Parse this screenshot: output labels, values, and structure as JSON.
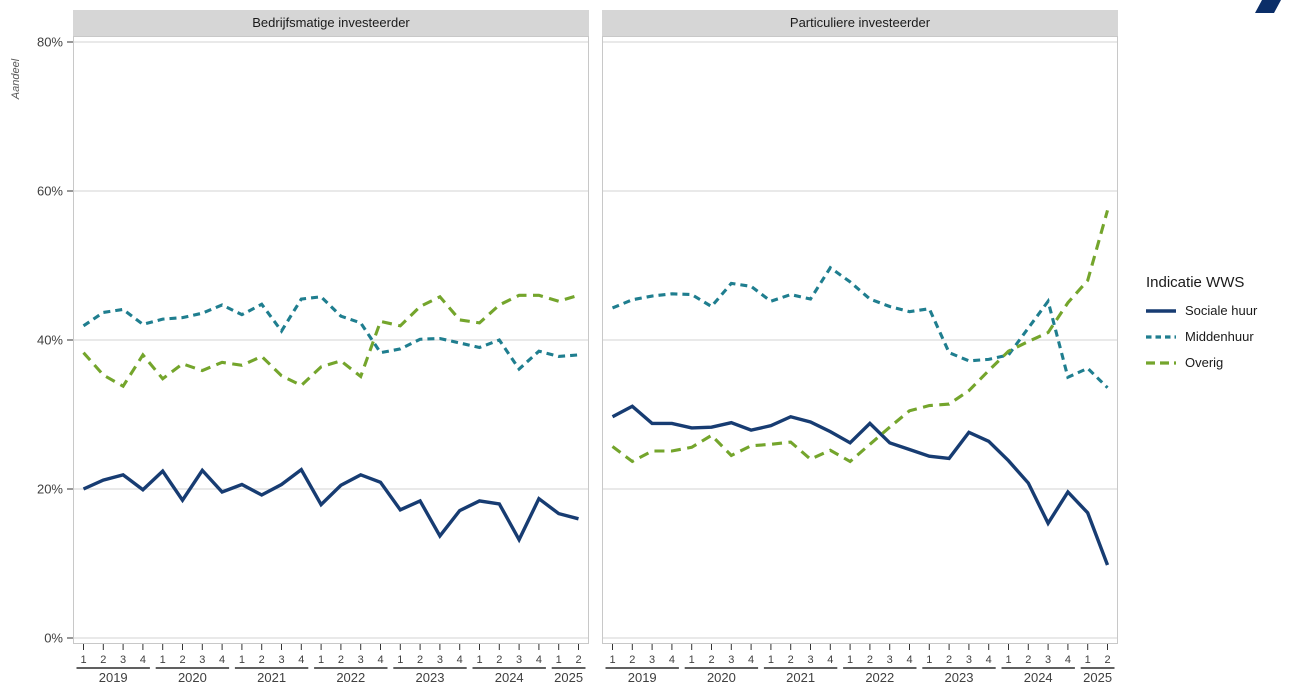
{
  "logo": {
    "name": "kadaster-logo-mark",
    "color": "#0b2e68"
  },
  "y_axis": {
    "title": "Aandeel",
    "tick_labels": [
      "0%",
      "20%",
      "40%",
      "60%",
      "80%"
    ]
  },
  "legend": {
    "title": "Indicatie WWS",
    "items": [
      {
        "label": "Sociale huur",
        "color": "#173c72",
        "dash": "solid"
      },
      {
        "label": "Middenhuur",
        "color": "#1f7e8f",
        "dash": "dashed-short"
      },
      {
        "label": "Overig",
        "color": "#74a52c",
        "dash": "dashed-long"
      }
    ]
  },
  "chart_data": {
    "type": "line",
    "ylabel": "Aandeel",
    "ylim": [
      0,
      80
    ],
    "y_ticks": [
      0,
      20,
      40,
      60,
      80
    ],
    "y_tick_format": "percent",
    "grid": "horizontal-major",
    "legend_position": "right",
    "x": {
      "years": [
        {
          "label": "2019",
          "quarters": 4
        },
        {
          "label": "2020",
          "quarters": 4
        },
        {
          "label": "2021",
          "quarters": 4
        },
        {
          "label": "2022",
          "quarters": 4
        },
        {
          "label": "2023",
          "quarters": 4
        },
        {
          "label": "2024",
          "quarters": 4
        },
        {
          "label": "2025",
          "quarters": 2
        }
      ]
    },
    "panels": [
      {
        "title": "Bedrijfsmatige investeerder",
        "series": [
          {
            "name": "Sociale huur",
            "color": "#173c72",
            "style": "solid",
            "values": [
              20.0,
              21.2,
              21.9,
              19.9,
              22.4,
              18.5,
              22.5,
              19.6,
              20.6,
              19.2,
              20.6,
              22.6,
              17.9,
              20.5,
              21.9,
              20.9,
              17.2,
              18.4,
              13.7,
              17.1,
              18.4,
              18.0,
              13.2,
              18.7,
              16.7,
              16.0
            ]
          },
          {
            "name": "Middenhuur",
            "color": "#1f7e8f",
            "style": "dashed",
            "values": [
              41.9,
              43.7,
              44.1,
              42.1,
              42.8,
              43.0,
              43.6,
              44.7,
              43.4,
              44.8,
              41.2,
              45.5,
              45.8,
              43.2,
              42.3,
              38.3,
              38.8,
              40.1,
              40.2,
              39.6,
              39.0,
              40.0,
              36.1,
              38.5,
              37.8,
              38.0
            ]
          },
          {
            "name": "Overig",
            "color": "#74a52c",
            "style": "longdash",
            "values": [
              38.3,
              35.3,
              33.8,
              38.0,
              34.8,
              36.8,
              35.9,
              37.0,
              36.6,
              37.8,
              35.2,
              33.9,
              36.4,
              37.2,
              35.1,
              42.5,
              41.9,
              44.5,
              45.8,
              42.7,
              42.3,
              44.7,
              46.0,
              46.0,
              45.2,
              46.0
            ]
          }
        ]
      },
      {
        "title": "Particuliere investeerder",
        "series": [
          {
            "name": "Sociale huur",
            "color": "#173c72",
            "style": "solid",
            "values": [
              29.7,
              31.1,
              28.8,
              28.8,
              28.2,
              28.3,
              28.9,
              27.9,
              28.5,
              29.7,
              29.0,
              27.7,
              26.2,
              28.8,
              26.2,
              25.3,
              24.4,
              24.1,
              27.6,
              26.4,
              23.8,
              20.8,
              15.4,
              19.6,
              16.8,
              9.8
            ]
          },
          {
            "name": "Middenhuur",
            "color": "#1f7e8f",
            "style": "dashed",
            "values": [
              44.3,
              45.4,
              45.9,
              46.2,
              46.1,
              44.5,
              47.6,
              47.2,
              45.2,
              46.1,
              45.5,
              49.7,
              47.8,
              45.5,
              44.5,
              43.8,
              44.2,
              38.3,
              37.2,
              37.4,
              38.0,
              41.6,
              45.2,
              35.0,
              36.2,
              33.6
            ]
          },
          {
            "name": "Overig",
            "color": "#74a52c",
            "style": "longdash",
            "values": [
              25.7,
              23.7,
              25.1,
              25.1,
              25.6,
              27.2,
              24.5,
              25.8,
              26.0,
              26.3,
              24.0,
              25.2,
              23.7,
              26.0,
              28.3,
              30.5,
              31.2,
              31.4,
              33.2,
              35.9,
              38.5,
              39.8,
              41.0,
              45.0,
              48.0,
              57.4
            ]
          }
        ]
      }
    ]
  }
}
